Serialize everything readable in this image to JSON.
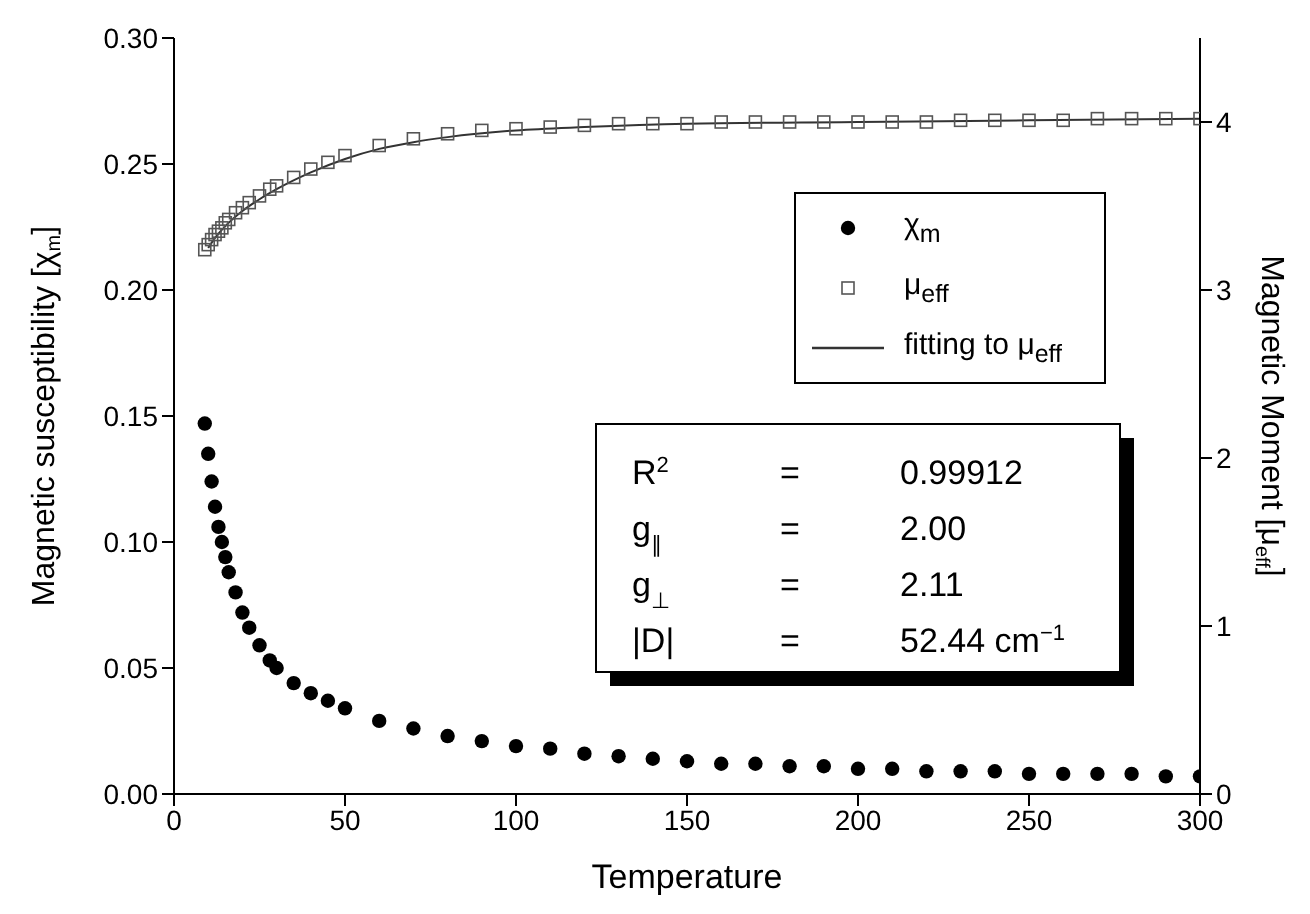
{
  "chart_data": {
    "type": "scatter",
    "xlabel": "Temperature",
    "ylabel": "Magnetic susceptibility [χ$_{m}$]",
    "y2label": "Magnetic Moment [μ$_{eff}$]",
    "xlim": [
      0,
      300
    ],
    "xticks": [
      0,
      50,
      100,
      150,
      200,
      250,
      300
    ],
    "ylim": [
      0,
      0.3
    ],
    "yticks": [
      {
        "value": 0,
        "label": "0.00"
      },
      {
        "value": 0.05,
        "label": "0.05"
      },
      {
        "value": 0.1,
        "label": "0.10"
      },
      {
        "value": 0.15,
        "label": "0.15"
      },
      {
        "value": 0.2,
        "label": "0.20"
      },
      {
        "value": 0.25,
        "label": "0.25"
      },
      {
        "value": 0.3,
        "label": "0.30"
      }
    ],
    "y2lim": [
      0,
      4.5
    ],
    "y2ticks": [
      0,
      1,
      2,
      3,
      4
    ],
    "legend": "top right",
    "grid": false,
    "series": [
      {
        "name": "χ$_{m}$",
        "marker": "circle",
        "color": "#000000",
        "x": [
          9,
          10,
          11,
          12,
          13,
          14,
          15,
          16,
          18,
          20,
          22,
          25,
          28,
          30,
          35,
          40,
          45,
          50,
          60,
          70,
          80,
          90,
          100,
          110,
          120,
          130,
          140,
          150,
          160,
          170,
          180,
          190,
          200,
          210,
          220,
          230,
          240,
          250,
          260,
          270,
          280,
          290,
          300
        ],
        "values": [
          0.147,
          0.135,
          0.124,
          0.114,
          0.106,
          0.1,
          0.094,
          0.088,
          0.08,
          0.072,
          0.066,
          0.059,
          0.053,
          0.05,
          0.044,
          0.04,
          0.037,
          0.034,
          0.029,
          0.026,
          0.023,
          0.021,
          0.019,
          0.018,
          0.016,
          0.015,
          0.014,
          0.013,
          0.012,
          0.012,
          0.011,
          0.011,
          0.01,
          0.01,
          0.009,
          0.009,
          0.009,
          0.008,
          0.008,
          0.008,
          0.008,
          0.007,
          0.007
        ]
      },
      {
        "name": "μ$_{eff}$",
        "marker": "square",
        "color": "#555555",
        "axis": "y2",
        "x": [
          9,
          10,
          11,
          12,
          13,
          14,
          15,
          16,
          18,
          20,
          22,
          25,
          28,
          30,
          35,
          40,
          45,
          50,
          60,
          70,
          80,
          90,
          100,
          110,
          120,
          130,
          140,
          150,
          160,
          170,
          180,
          190,
          200,
          210,
          220,
          230,
          240,
          250,
          260,
          270,
          280,
          290,
          300
        ],
        "values": [
          3.24,
          3.27,
          3.3,
          3.33,
          3.35,
          3.37,
          3.4,
          3.42,
          3.46,
          3.49,
          3.52,
          3.56,
          3.6,
          3.62,
          3.67,
          3.72,
          3.76,
          3.8,
          3.86,
          3.9,
          3.93,
          3.95,
          3.96,
          3.97,
          3.98,
          3.99,
          3.99,
          3.99,
          4.0,
          4.0,
          4.0,
          4.0,
          4.0,
          4.0,
          4.0,
          4.01,
          4.01,
          4.01,
          4.01,
          4.02,
          4.02,
          4.02,
          4.02
        ]
      },
      {
        "name": "fitting to μ$_{eff}$",
        "type": "line",
        "marker": "none",
        "line_style": "solid",
        "color": "#333333",
        "axis": "y2",
        "x": [
          10,
          12,
          15,
          20,
          25,
          30,
          40,
          50,
          60,
          70,
          80,
          100,
          120,
          150,
          200,
          250,
          300
        ],
        "values": [
          3.25,
          3.31,
          3.38,
          3.47,
          3.54,
          3.6,
          3.7,
          3.78,
          3.84,
          3.88,
          3.91,
          3.95,
          3.97,
          3.99,
          4.0,
          4.01,
          4.02
        ]
      }
    ],
    "annotations": [
      "R$^{2}$ = 0.99912",
      "g$_{∥}$ = 2.00",
      "g$_{⊥}$ = 2.11",
      "|D| = 52.44 cm$^{−1}$"
    ]
  }
}
